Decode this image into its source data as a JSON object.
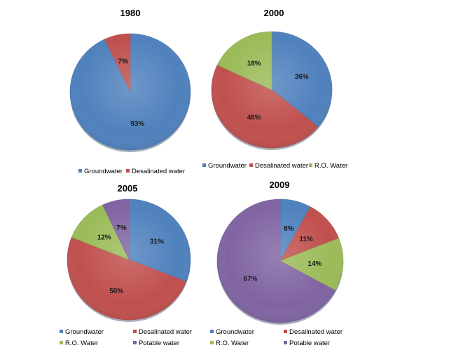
{
  "colors": {
    "groundwater": "#4F81BD",
    "desalinated": "#C0504D",
    "ro": "#9BBB59",
    "potable": "#8064A2"
  },
  "chart_data": [
    {
      "type": "pie",
      "title": "1980",
      "slices": [
        {
          "name": "Groundwater",
          "value": 93,
          "label": "93%",
          "color": "#4F81BD"
        },
        {
          "name": "Desalinated water",
          "value": 7,
          "label": "7%",
          "color": "#C0504D"
        }
      ],
      "legend": [
        {
          "name": "Groundwater",
          "color": "#4F81BD"
        },
        {
          "name": "Desalinated water",
          "color": "#C0504D"
        }
      ]
    },
    {
      "type": "pie",
      "title": "2000",
      "slices": [
        {
          "name": "Groundwater",
          "value": 36,
          "label": "36%",
          "color": "#4F81BD"
        },
        {
          "name": "Desalinated water",
          "value": 46,
          "label": "46%",
          "color": "#C0504D"
        },
        {
          "name": "R.O. Water",
          "value": 18,
          "label": "18%",
          "color": "#9BBB59"
        }
      ],
      "legend": [
        {
          "name": "Groundwater",
          "color": "#4F81BD"
        },
        {
          "name": "Desalinated water",
          "color": "#C0504D"
        },
        {
          "name": "R.O. Water",
          "color": "#9BBB59"
        }
      ]
    },
    {
      "type": "pie",
      "title": "2005",
      "slices": [
        {
          "name": "Groundwater",
          "value": 31,
          "label": "31%",
          "color": "#4F81BD"
        },
        {
          "name": "Desalinated water",
          "value": 50,
          "label": "50%",
          "color": "#C0504D"
        },
        {
          "name": "R.O. Water",
          "value": 12,
          "label": "12%",
          "color": "#9BBB59"
        },
        {
          "name": "Potable water",
          "value": 7,
          "label": "7%",
          "color": "#8064A2"
        }
      ],
      "legend": [
        {
          "name": "Groundwater",
          "color": "#4F81BD"
        },
        {
          "name": "Desalinated water",
          "color": "#C0504D"
        },
        {
          "name": "R.O. Water",
          "color": "#9BBB59"
        },
        {
          "name": "Potable water",
          "color": "#8064A2"
        }
      ]
    },
    {
      "type": "pie",
      "title": "2009",
      "slices": [
        {
          "name": "Groundwater",
          "value": 8,
          "label": "8%",
          "color": "#4F81BD"
        },
        {
          "name": "Desalinated water",
          "value": 11,
          "label": "11%",
          "color": "#C0504D"
        },
        {
          "name": "R.O. Water",
          "value": 14,
          "label": "14%",
          "color": "#9BBB59"
        },
        {
          "name": "Potable water",
          "value": 67,
          "label": "67%",
          "color": "#8064A2"
        }
      ],
      "legend": [
        {
          "name": "Groundwater",
          "color": "#4F81BD"
        },
        {
          "name": "Desalinated water",
          "color": "#C0504D"
        },
        {
          "name": "R.O. Water",
          "color": "#9BBB59"
        },
        {
          "name": "Potable water",
          "color": "#8064A2"
        }
      ]
    }
  ]
}
